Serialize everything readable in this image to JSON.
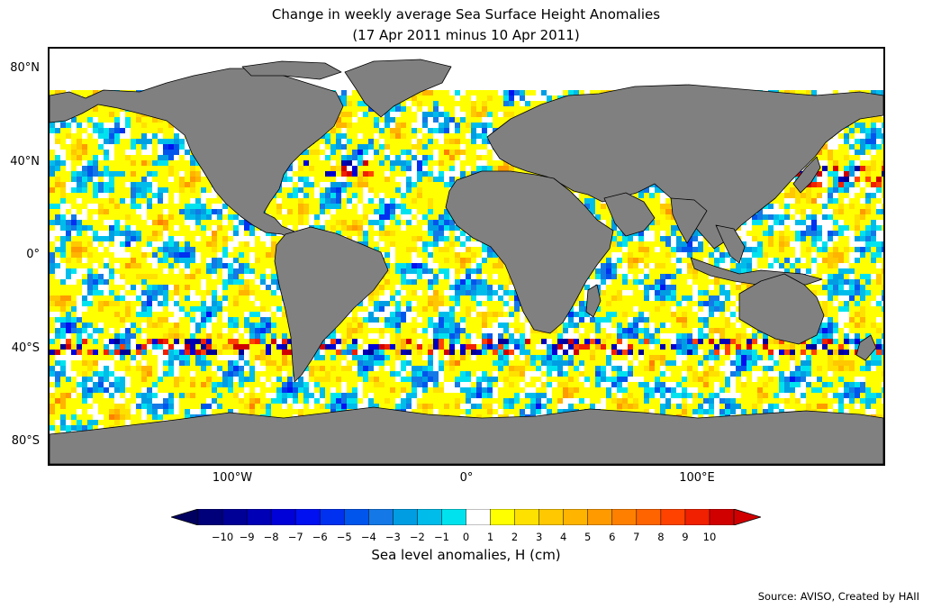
{
  "title": {
    "line1": "Change in weekly average Sea Surface Height Anomalies",
    "line2": "(17 Apr 2011 minus 10 Apr 2011)"
  },
  "map": {
    "projection": "equirectangular",
    "lon_range": [
      -180,
      180
    ],
    "lat_range": [
      -90,
      90
    ],
    "land_color": "#808080",
    "no_data_color": "#ffffff",
    "lat_labels": [
      {
        "lat": 80,
        "text": "80°N"
      },
      {
        "lat": 40,
        "text": "40°N"
      },
      {
        "lat": 0,
        "text": "0°"
      },
      {
        "lat": -40,
        "text": "40°S"
      },
      {
        "lat": -80,
        "text": "80°S"
      }
    ],
    "lon_labels": [
      {
        "lon": -100,
        "text": "100°W"
      },
      {
        "lon": 0,
        "text": "0°"
      },
      {
        "lon": 100,
        "text": "100°E"
      }
    ]
  },
  "colorbar": {
    "label": "Sea level anomalies, H (cm)",
    "extend": "both",
    "ticks": [
      "−10",
      "−9",
      "−8",
      "−7",
      "−6",
      "−5",
      "−4",
      "−3",
      "−2",
      "−1",
      "0",
      "1",
      "2",
      "3",
      "4",
      "5",
      "6",
      "7",
      "8",
      "9",
      "10"
    ],
    "colors": [
      "#00007a",
      "#000097",
      "#0000b6",
      "#0000d8",
      "#0010f0",
      "#0030f0",
      "#0055ec",
      "#1479e6",
      "#009de3",
      "#00bceb",
      "#00e3ee",
      "#ffffff",
      "#ffff00",
      "#ffe100",
      "#ffc800",
      "#ffb400",
      "#ff9a00",
      "#ff8000",
      "#ff6400",
      "#ff4200",
      "#f02000",
      "#d00000"
    ],
    "under_color": "#000060",
    "over_color": "#d00000"
  },
  "source": "Source: AVISO, Created by HAII"
}
